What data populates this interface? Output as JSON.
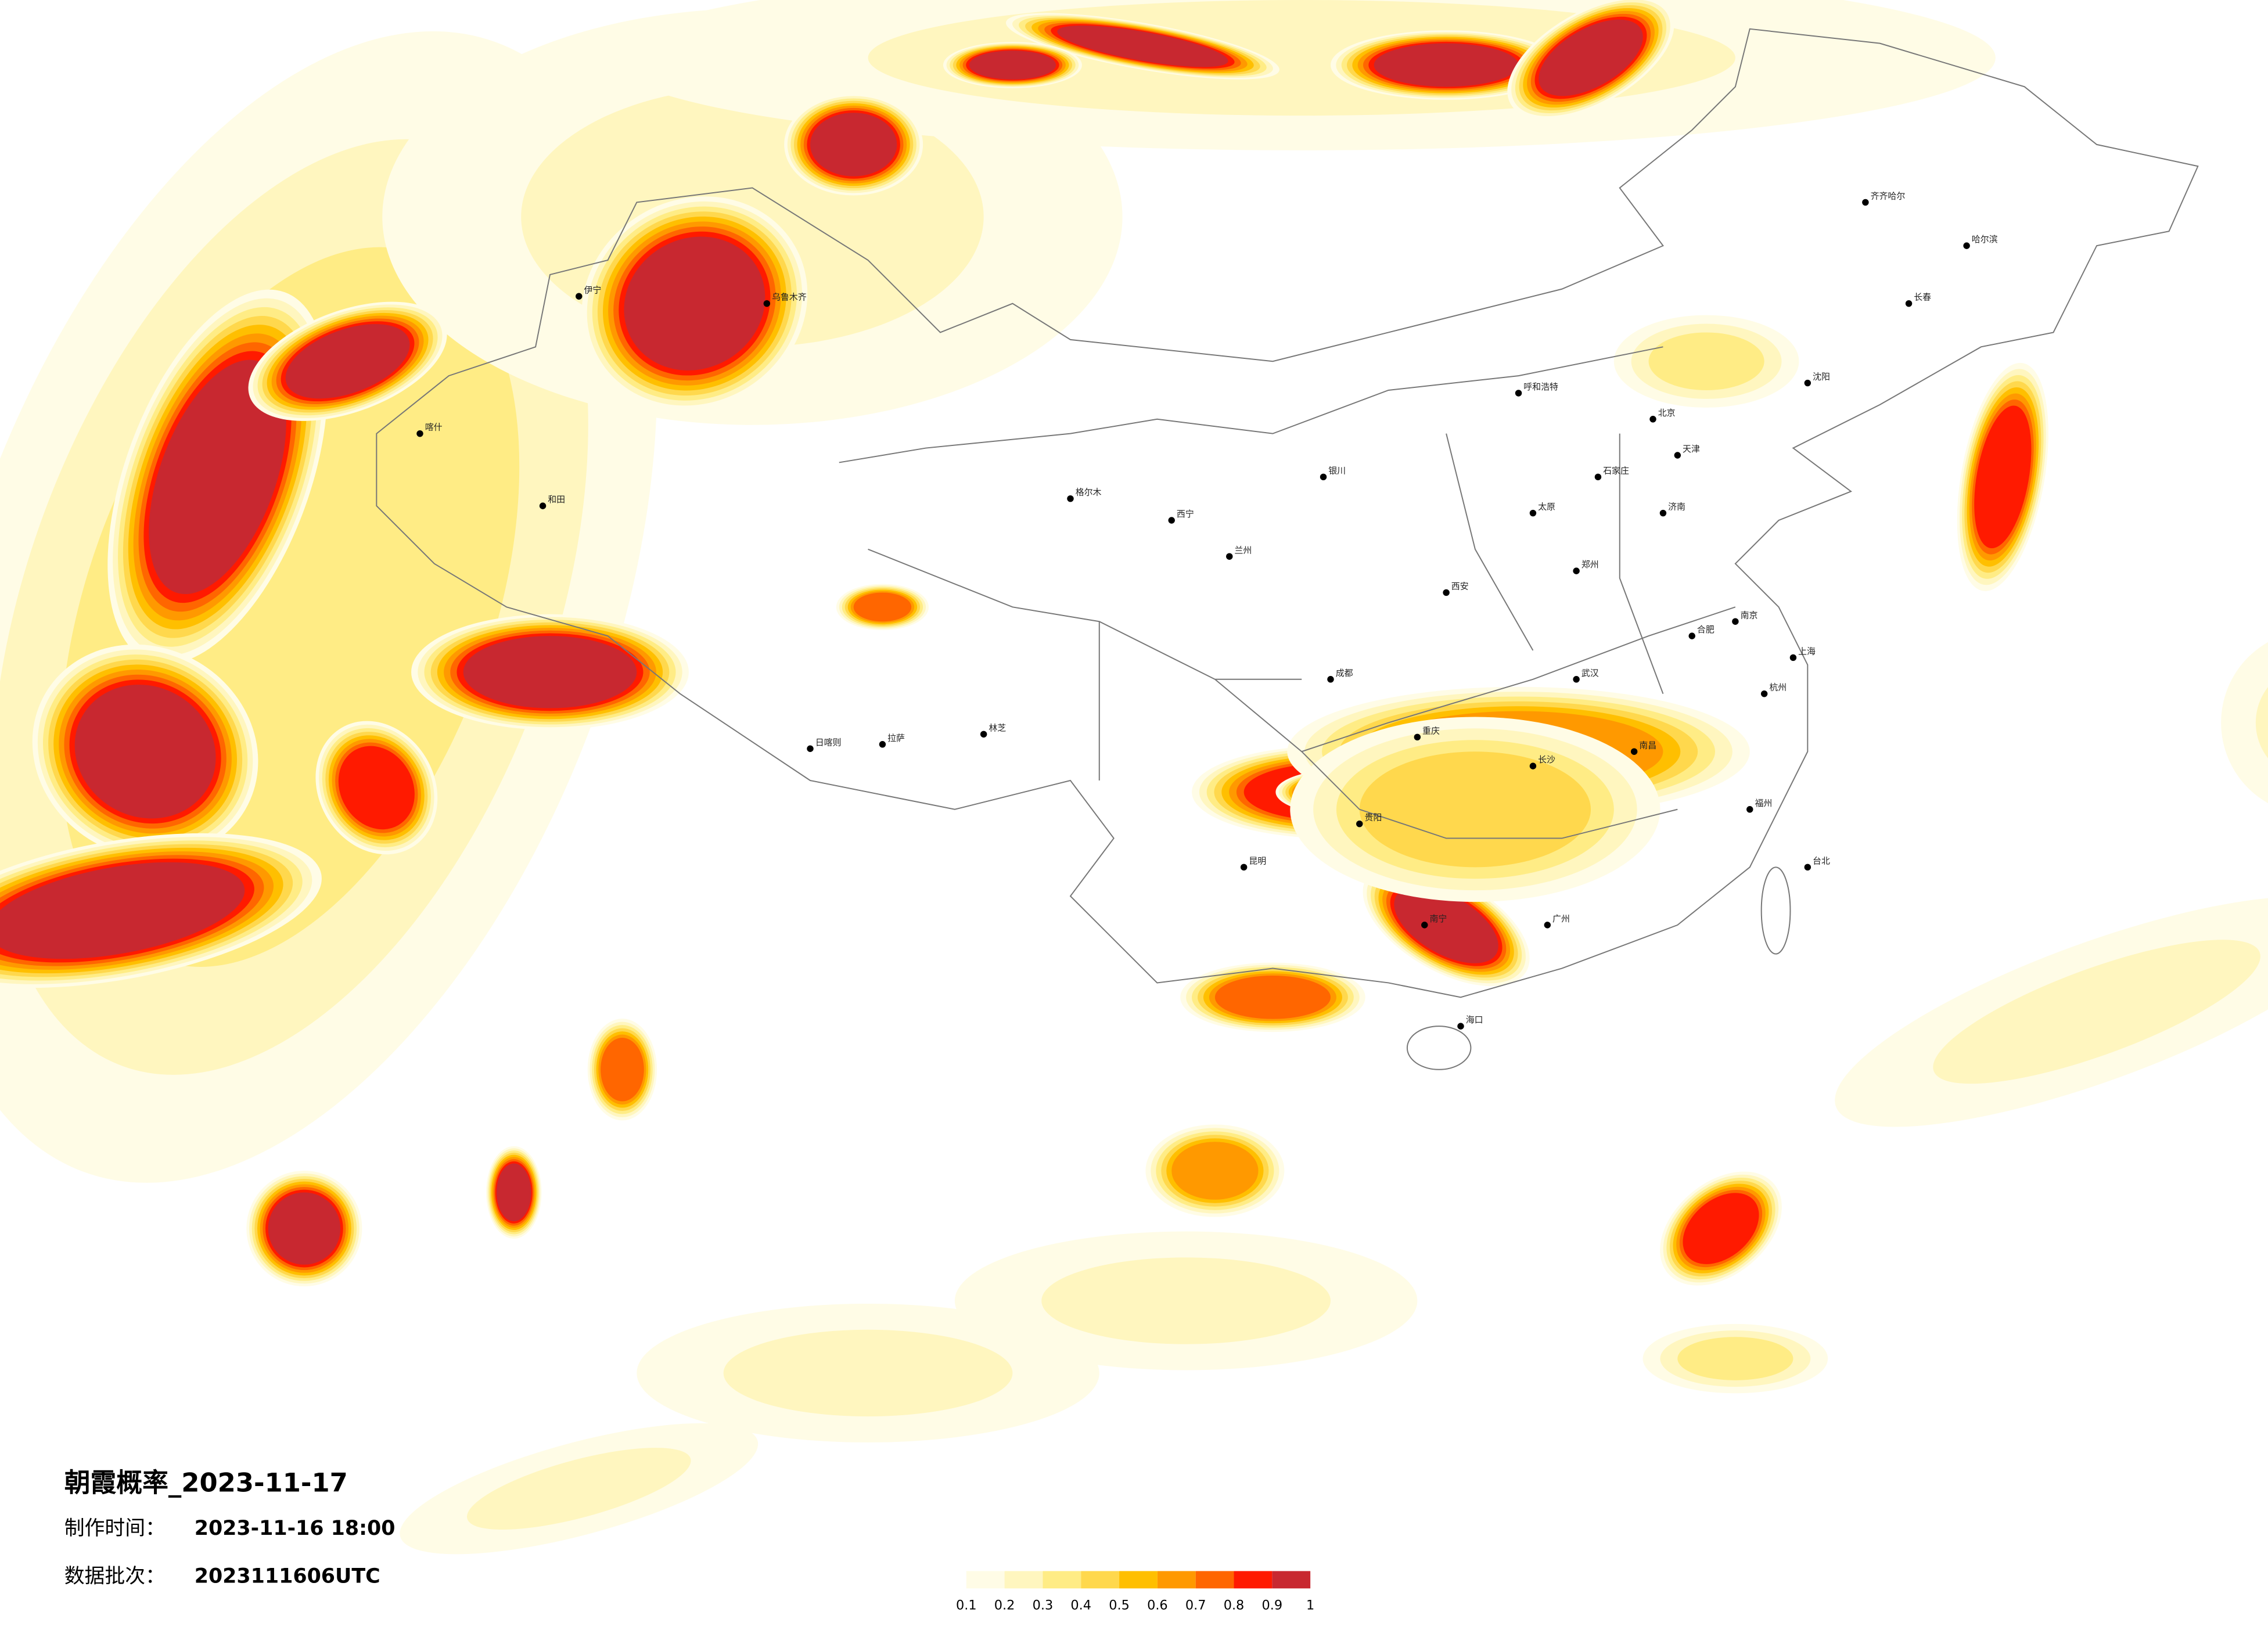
{
  "title": "朝霞概率_2023-11-17",
  "issue": {
    "label": "制作时间：",
    "value": "2023-11-16 18:00"
  },
  "batch": {
    "label": "数据批次：",
    "value": "2023111606UTC"
  },
  "colorbar": {
    "ticks": [
      0.1,
      0.2,
      0.3,
      0.4,
      0.5,
      0.6,
      0.7,
      0.8,
      0.9,
      1
    ],
    "colors": [
      "#fffce6",
      "#fff6bf",
      "#ffec85",
      "#ffd84d",
      "#ffbf00",
      "#ff9900",
      "#ff6600",
      "#ff1a00",
      "#c82830"
    ]
  },
  "cities": [
    "北京",
    "天津",
    "石家庄",
    "太原",
    "呼和浩特",
    "沈阳",
    "长春",
    "哈尔滨",
    "济南",
    "郑州",
    "西安",
    "兰州",
    "西宁",
    "银川",
    "乌鲁木齐",
    "拉萨",
    "成都",
    "重庆",
    "贵阳",
    "昆明",
    "南宁",
    "广州",
    "长沙",
    "武汉",
    "南昌",
    "合肥",
    "南京",
    "上海",
    "杭州",
    "福州",
    "台北",
    "海口",
    "齐齐哈尔",
    "喀什",
    "和田",
    "伊宁",
    "日喀则",
    "林芝",
    "格尔木"
  ]
}
